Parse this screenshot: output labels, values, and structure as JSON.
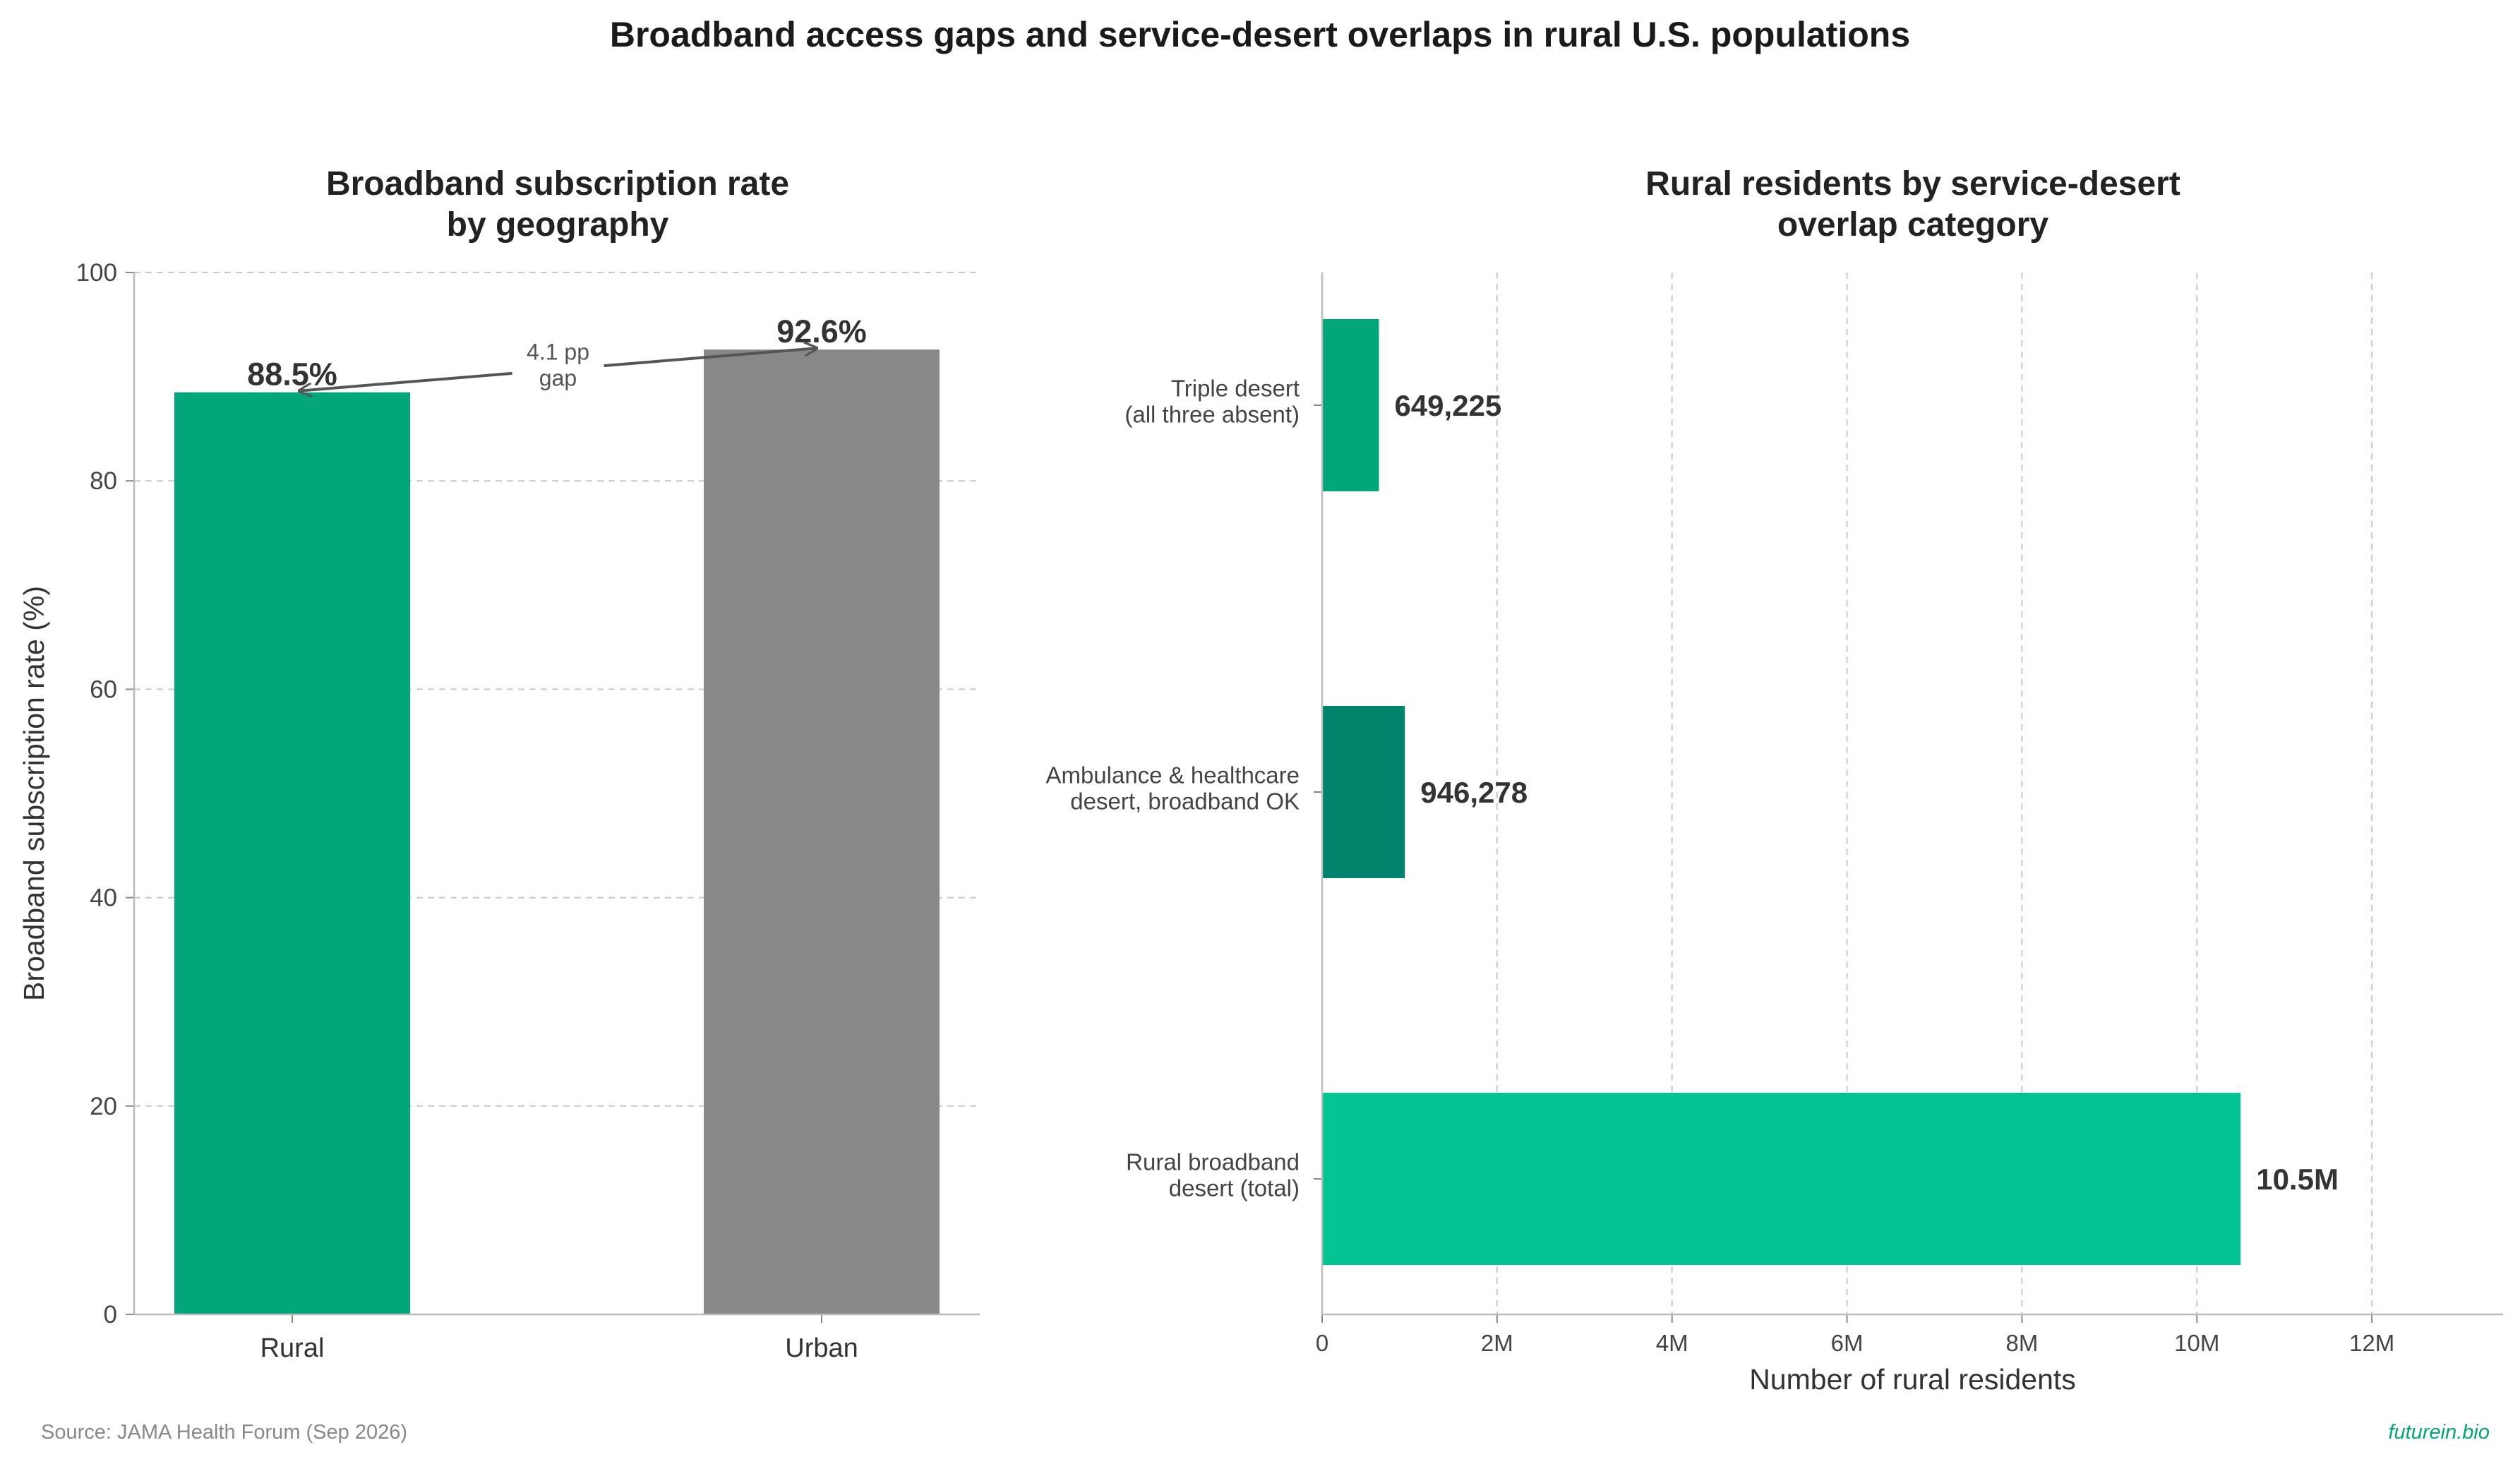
{
  "figure": {
    "title": "Broadband access gaps and service-desert overlaps in rural U.S. populations",
    "source": "Source: JAMA Health Forum (Sep 2026)",
    "brand": "futurein.bio"
  },
  "chart_data": [
    {
      "type": "bar",
      "title_lines": [
        "Broadband subscription rate",
        "by geography"
      ],
      "ylabel": "Broadband subscription rate (%)",
      "xlabel": "",
      "categories": [
        "Rural",
        "Urban"
      ],
      "values": [
        88.5,
        92.6
      ],
      "value_labels": [
        "88.5%",
        "92.6%"
      ],
      "colors": [
        "#03a678",
        "#888888"
      ],
      "ylim": [
        0,
        100
      ],
      "yticks": [
        0,
        20,
        40,
        60,
        80,
        100
      ],
      "grid": "horizontal dashed",
      "annotation": {
        "lines": [
          "4.1 pp",
          "gap"
        ],
        "from": "Rural",
        "to": "Urban"
      }
    },
    {
      "type": "bar",
      "orientation": "horizontal",
      "title_lines": [
        "Rural residents by service-desert",
        "overlap category"
      ],
      "xlabel": "Number of rural residents",
      "ylabel": "",
      "categories": [
        [
          "Triple desert",
          "(all three absent)"
        ],
        [
          "Ambulance & healthcare",
          "desert, broadband OK"
        ],
        [
          "Rural broadband",
          "desert (total)"
        ]
      ],
      "values": [
        649225,
        946278,
        10500000
      ],
      "value_labels": [
        "649,225",
        "946,278",
        "10.5M"
      ],
      "colors": [
        "#03a678",
        "#02846c",
        "#05c493"
      ],
      "xlim": [
        0,
        13500000
      ],
      "xticks": [
        0,
        2000000,
        4000000,
        6000000,
        8000000,
        10000000,
        12000000
      ],
      "xtick_labels": [
        "0",
        "2M",
        "4M",
        "6M",
        "8M",
        "10M",
        "12M"
      ],
      "grid": "vertical dashed"
    }
  ]
}
